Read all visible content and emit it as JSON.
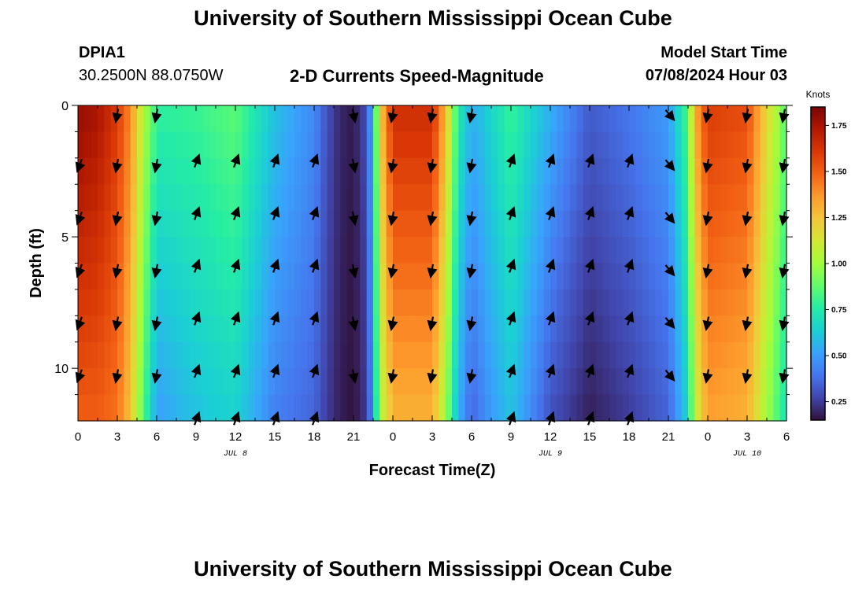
{
  "header": {
    "main_title": "University of Southern Mississippi Ocean Cube",
    "station": "DPIA1",
    "coords": "30.2500N  88.0750W",
    "chart_title": "2-D Currents Speed-Magnitude",
    "model_start_label": "Model Start Time",
    "model_start_value": "07/08/2024 Hour 03",
    "bottom_title": "University of Southern Mississippi Ocean Cube"
  },
  "chart_data": {
    "type": "heatmap",
    "title": "2-D Currents Speed-Magnitude",
    "xlabel": "Forecast Time(Z)",
    "ylabel": "Depth (ft)",
    "x_hours_range": [
      0,
      54
    ],
    "y_range": [
      0,
      12
    ],
    "y_reversed": true,
    "x_tick_hours": [
      0,
      3,
      6,
      9,
      12,
      15,
      18,
      21,
      24,
      27,
      30,
      33,
      36,
      39,
      42,
      45,
      48,
      51,
      54
    ],
    "x_tick_labels": [
      "0",
      "3",
      "6",
      "9",
      "12",
      "15",
      "18",
      "21",
      "0",
      "3",
      "6",
      "9",
      "12",
      "15",
      "18",
      "21",
      "0",
      "3",
      "6"
    ],
    "y_ticks": [
      0,
      5,
      10
    ],
    "y_tick_labels": [
      "0",
      "5",
      "10"
    ],
    "date_labels": [
      {
        "hour": 12,
        "label": "JUL 8"
      },
      {
        "hour": 36,
        "label": "JUL 9"
      },
      {
        "hour": 51,
        "label": "JUL 10"
      }
    ],
    "colorbar": {
      "label": "Knots",
      "min": 0.15,
      "max": 1.85,
      "ticks": [
        0.25,
        0.5,
        0.75,
        1.0,
        1.25,
        1.5,
        1.75
      ],
      "tick_labels": [
        "0.25",
        "0.50",
        "0.75",
        "1.00",
        "1.25",
        "1.50",
        "1.75"
      ],
      "colors": [
        "#30123b",
        "#4145ab",
        "#4675ed",
        "#39a2fc",
        "#1bcfd4",
        "#24eca6",
        "#61fc6c",
        "#a4fc3b",
        "#d1e834",
        "#f3c63a",
        "#fe9b2d",
        "#f36315",
        "#d93806",
        "#b11901",
        "#7a0403"
      ]
    },
    "speed_time_hours": [
      0,
      1.5,
      3,
      4,
      5,
      6,
      9,
      12,
      15,
      18,
      19,
      20,
      21,
      22,
      22.5,
      23,
      24,
      27,
      28,
      29,
      30,
      31,
      33,
      36,
      39,
      42,
      45,
      46.5,
      47,
      48,
      51,
      54
    ],
    "speed_surface_knots": [
      1.8,
      1.75,
      1.6,
      1.4,
      1.05,
      0.78,
      0.8,
      0.87,
      0.6,
      0.45,
      0.3,
      0.2,
      0.17,
      0.3,
      0.6,
      1.2,
      1.65,
      1.65,
      1.3,
      0.75,
      0.55,
      0.62,
      0.8,
      0.55,
      0.33,
      0.4,
      0.5,
      0.85,
      1.3,
      1.6,
      1.55,
      0.85
    ],
    "speed_bottom_knots": [
      1.5,
      1.5,
      1.45,
      1.25,
      0.85,
      0.5,
      0.6,
      0.65,
      0.42,
      0.35,
      0.25,
      0.18,
      0.15,
      0.25,
      0.5,
      1.0,
      1.3,
      1.3,
      1.0,
      0.55,
      0.35,
      0.45,
      0.6,
      0.3,
      0.18,
      0.25,
      0.35,
      0.65,
      1.05,
      1.35,
      1.3,
      0.7
    ],
    "arrow_time_hours": [
      0,
      3,
      6,
      9,
      12,
      15,
      18,
      21,
      24,
      27,
      30,
      33,
      36,
      39,
      42,
      45,
      48,
      51,
      54
    ],
    "arrow_depths_ft": [
      0.3,
      2.2,
      4.2,
      6.2,
      8.2,
      10.2,
      12.0
    ],
    "arrow_direction_deg": [
      200,
      190,
      190,
      20,
      20,
      20,
      20,
      170,
      190,
      190,
      190,
      20,
      20,
      20,
      20,
      140,
      190,
      190,
      190
    ],
    "arrow_top_hours": [
      24,
      27,
      45
    ]
  }
}
